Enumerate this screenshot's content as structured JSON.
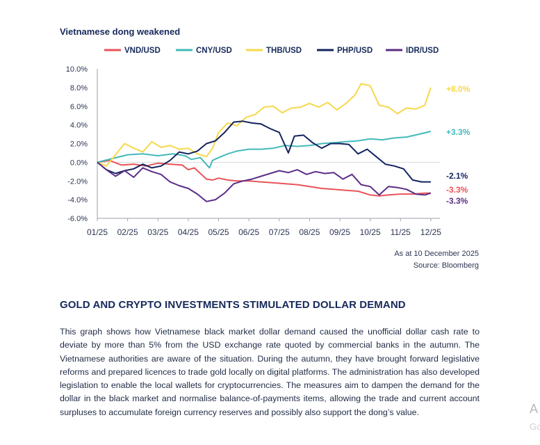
{
  "chart_data": {
    "type": "line",
    "title": "Vietnamese dong weakened",
    "x_labels": [
      "01/25",
      "02/25",
      "03/25",
      "04/25",
      "05/25",
      "06/25",
      "07/25",
      "08/25",
      "09/25",
      "10/25",
      "11/25",
      "12/25"
    ],
    "y_ticks": [
      "10.0%",
      "8.0%",
      "6.0%",
      "4.0%",
      "2.0%",
      "0.0%",
      "-2.0%",
      "-4.0%",
      "-6.0%"
    ],
    "ylim": [
      -6,
      10
    ],
    "xlim": [
      0,
      11.3
    ],
    "legend_position": "top",
    "series": [
      {
        "name": "VND/USD",
        "color": "#e8545a",
        "end_label": "-3.3%",
        "points": [
          [
            0,
            0
          ],
          [
            0.4,
            0.2
          ],
          [
            0.8,
            -0.3
          ],
          [
            1.2,
            -0.2
          ],
          [
            1.6,
            -0.4
          ],
          [
            2.0,
            -0.1
          ],
          [
            2.4,
            -0.2
          ],
          [
            2.8,
            -0.3
          ],
          [
            3.0,
            -0.8
          ],
          [
            3.2,
            -0.6
          ],
          [
            3.4,
            -1.2
          ],
          [
            3.6,
            -1.8
          ],
          [
            3.8,
            -1.9
          ],
          [
            4.0,
            -1.7
          ],
          [
            4.3,
            -1.9
          ],
          [
            4.6,
            -2.0
          ],
          [
            5.0,
            -2.0
          ],
          [
            5.4,
            -2.1
          ],
          [
            5.8,
            -2.2
          ],
          [
            6.2,
            -2.3
          ],
          [
            6.6,
            -2.4
          ],
          [
            7.0,
            -2.6
          ],
          [
            7.4,
            -2.8
          ],
          [
            7.8,
            -2.9
          ],
          [
            8.2,
            -3.0
          ],
          [
            8.6,
            -3.1
          ],
          [
            9.0,
            -3.5
          ],
          [
            9.3,
            -3.6
          ],
          [
            9.6,
            -3.5
          ],
          [
            10.0,
            -3.4
          ],
          [
            10.4,
            -3.4
          ],
          [
            10.8,
            -3.3
          ],
          [
            11.0,
            -3.3
          ]
        ]
      },
      {
        "name": "CNY/USD",
        "color": "#44b9b9",
        "end_label": "+3.3%",
        "points": [
          [
            0,
            0
          ],
          [
            0.5,
            0.4
          ],
          [
            1.0,
            0.8
          ],
          [
            1.5,
            0.9
          ],
          [
            2.0,
            0.7
          ],
          [
            2.5,
            0.9
          ],
          [
            2.9,
            0.7
          ],
          [
            3.1,
            0.3
          ],
          [
            3.4,
            0.5
          ],
          [
            3.7,
            -0.6
          ],
          [
            3.8,
            0.2
          ],
          [
            4.0,
            0.5
          ],
          [
            4.3,
            0.9
          ],
          [
            4.6,
            1.2
          ],
          [
            5.0,
            1.4
          ],
          [
            5.4,
            1.4
          ],
          [
            5.8,
            1.5
          ],
          [
            6.2,
            1.8
          ],
          [
            6.6,
            1.7
          ],
          [
            7.0,
            1.8
          ],
          [
            7.4,
            2.0
          ],
          [
            7.8,
            2.1
          ],
          [
            8.2,
            2.2
          ],
          [
            8.6,
            2.3
          ],
          [
            9.0,
            2.5
          ],
          [
            9.4,
            2.4
          ],
          [
            9.8,
            2.6
          ],
          [
            10.2,
            2.7
          ],
          [
            10.6,
            3.0
          ],
          [
            11.0,
            3.3
          ]
        ]
      },
      {
        "name": "THB/USD",
        "color": "#f6d84a",
        "end_label": "+8.0%",
        "points": [
          [
            0,
            0
          ],
          [
            0.3,
            -0.4
          ],
          [
            0.6,
            0.8
          ],
          [
            0.9,
            2.0
          ],
          [
            1.2,
            1.5
          ],
          [
            1.5,
            1.1
          ],
          [
            1.8,
            2.2
          ],
          [
            2.1,
            1.6
          ],
          [
            2.4,
            1.8
          ],
          [
            2.7,
            1.4
          ],
          [
            3.0,
            1.5
          ],
          [
            3.3,
            0.9
          ],
          [
            3.6,
            0.6
          ],
          [
            3.8,
            1.5
          ],
          [
            4.0,
            3.2
          ],
          [
            4.3,
            4.2
          ],
          [
            4.6,
            3.9
          ],
          [
            4.9,
            4.8
          ],
          [
            5.2,
            5.1
          ],
          [
            5.5,
            5.9
          ],
          [
            5.8,
            6.0
          ],
          [
            6.1,
            5.3
          ],
          [
            6.4,
            5.8
          ],
          [
            6.7,
            5.9
          ],
          [
            7.0,
            6.3
          ],
          [
            7.3,
            5.9
          ],
          [
            7.6,
            6.4
          ],
          [
            7.9,
            5.6
          ],
          [
            8.2,
            6.3
          ],
          [
            8.5,
            7.2
          ],
          [
            8.7,
            8.4
          ],
          [
            9.0,
            8.2
          ],
          [
            9.3,
            6.1
          ],
          [
            9.6,
            5.9
          ],
          [
            9.9,
            5.2
          ],
          [
            10.2,
            5.8
          ],
          [
            10.5,
            5.7
          ],
          [
            10.8,
            6.1
          ],
          [
            11.0,
            8.0
          ]
        ]
      },
      {
        "name": "PHP/USD",
        "color": "#13235f",
        "end_label": "-2.1%",
        "points": [
          [
            0,
            0
          ],
          [
            0.3,
            -0.8
          ],
          [
            0.6,
            -1.2
          ],
          [
            0.9,
            -0.9
          ],
          [
            1.2,
            -0.7
          ],
          [
            1.5,
            -0.2
          ],
          [
            1.8,
            -0.6
          ],
          [
            2.1,
            -0.4
          ],
          [
            2.4,
            0.2
          ],
          [
            2.7,
            1.1
          ],
          [
            3.0,
            0.9
          ],
          [
            3.3,
            1.2
          ],
          [
            3.6,
            2.0
          ],
          [
            3.9,
            2.3
          ],
          [
            4.2,
            3.2
          ],
          [
            4.5,
            4.3
          ],
          [
            4.8,
            4.4
          ],
          [
            5.1,
            4.2
          ],
          [
            5.4,
            4.1
          ],
          [
            5.7,
            3.6
          ],
          [
            6.0,
            3.2
          ],
          [
            6.3,
            1.0
          ],
          [
            6.5,
            2.8
          ],
          [
            6.8,
            2.9
          ],
          [
            7.1,
            2.1
          ],
          [
            7.4,
            1.5
          ],
          [
            7.7,
            2.0
          ],
          [
            8.0,
            2.0
          ],
          [
            8.3,
            1.9
          ],
          [
            8.6,
            0.9
          ],
          [
            8.9,
            1.4
          ],
          [
            9.2,
            0.6
          ],
          [
            9.5,
            -0.2
          ],
          [
            9.8,
            -0.4
          ],
          [
            10.1,
            -0.7
          ],
          [
            10.4,
            -1.9
          ],
          [
            10.7,
            -2.1
          ],
          [
            11.0,
            -2.1
          ]
        ]
      },
      {
        "name": "IDR/USD",
        "color": "#5b2d86",
        "end_label": "-3.3%",
        "points": [
          [
            0,
            0
          ],
          [
            0.3,
            -0.8
          ],
          [
            0.6,
            -1.5
          ],
          [
            0.9,
            -0.9
          ],
          [
            1.2,
            -1.6
          ],
          [
            1.5,
            -0.6
          ],
          [
            1.8,
            -1.0
          ],
          [
            2.1,
            -1.3
          ],
          [
            2.4,
            -2.1
          ],
          [
            2.7,
            -2.5
          ],
          [
            3.0,
            -2.8
          ],
          [
            3.3,
            -3.4
          ],
          [
            3.6,
            -4.2
          ],
          [
            3.9,
            -4.0
          ],
          [
            4.2,
            -3.3
          ],
          [
            4.5,
            -2.3
          ],
          [
            4.8,
            -2.0
          ],
          [
            5.1,
            -1.8
          ],
          [
            5.4,
            -1.5
          ],
          [
            5.7,
            -1.2
          ],
          [
            6.0,
            -0.9
          ],
          [
            6.3,
            -1.1
          ],
          [
            6.6,
            -0.8
          ],
          [
            6.9,
            -1.3
          ],
          [
            7.2,
            -1.0
          ],
          [
            7.5,
            -1.2
          ],
          [
            7.8,
            -1.1
          ],
          [
            8.1,
            -1.8
          ],
          [
            8.4,
            -1.3
          ],
          [
            8.7,
            -2.4
          ],
          [
            9.0,
            -2.6
          ],
          [
            9.3,
            -3.5
          ],
          [
            9.6,
            -2.6
          ],
          [
            9.9,
            -2.7
          ],
          [
            10.2,
            -2.9
          ],
          [
            10.5,
            -3.4
          ],
          [
            10.8,
            -3.5
          ],
          [
            11.0,
            -3.3
          ]
        ]
      }
    ]
  },
  "notes": {
    "as_at": "As at 10 December 2025",
    "source": "Source: Bloomberg"
  },
  "article": {
    "heading": "GOLD AND CRYPTO INVESTMENTS STIMULATED DOLLAR DEMAND",
    "body": "This graph shows how Vietnamese black market dollar demand caused the unofficial dollar cash rate to deviate by more than 5% from the USD exchange rate quoted by commercial banks in the autumn. The Vietnamese authorities are aware of the situation. During the autumn, they have brought forward legislative reforms and prepared licences to trade gold locally on digital platforms. The administration has also developed legislation to enable the local wallets for cryptocurrencies. The measures aim to dampen the demand for the dollar in the black market and normalise balance-of-payments items, allowing the trade and current account surpluses to accumulate foreign currency reserves and possibly also support the dong’s value."
  },
  "side_fragment": {
    "line1": "A",
    "line2": "Go"
  }
}
